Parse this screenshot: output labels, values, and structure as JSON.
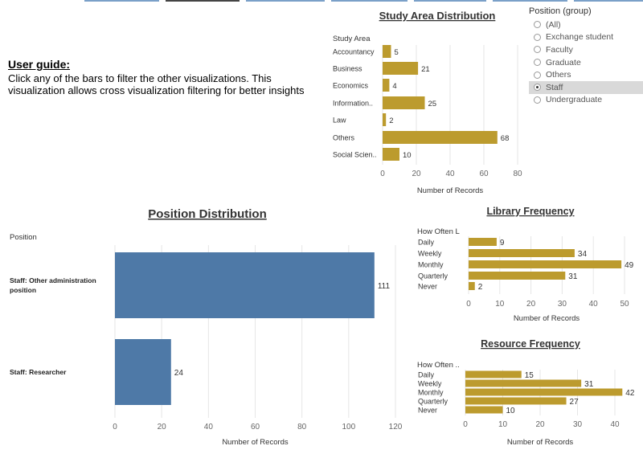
{
  "user_guide": {
    "heading": "User guide:",
    "body": "Click any of the bars to filter the other visualizations. This visualization allows cross visualization filtering for better insights"
  },
  "filter": {
    "title": "Position (group)",
    "options": [
      "(All)",
      "Exchange student",
      "Faculty",
      "Graduate",
      "Others",
      "Staff",
      "Undergraduate"
    ],
    "selected": "Staff"
  },
  "colors": {
    "gold": "#bc9b2e",
    "blue": "#4e79a7",
    "grid": "#e6e6e6"
  },
  "chart_data": [
    {
      "type": "bar",
      "title": "Study Area Distribution",
      "row_header": "Study Area",
      "categories": [
        "Accountancy",
        "Business",
        "Economics",
        "Information..",
        "Law",
        "Others",
        "Social Scien.."
      ],
      "values": [
        5,
        21,
        4,
        25,
        2,
        68,
        10
      ],
      "xlabel": "Number of Records",
      "xlim": [
        0,
        80
      ],
      "ticks": [
        0,
        20,
        40,
        60,
        80
      ]
    },
    {
      "type": "bar",
      "title": "Position Distribution",
      "row_header": "Position",
      "categories": [
        "Staff: Other administration position",
        "Staff: Researcher"
      ],
      "values": [
        111,
        24
      ],
      "xlabel": "Number of Records",
      "xlim": [
        0,
        120
      ],
      "ticks": [
        0,
        20,
        40,
        60,
        80,
        100,
        120
      ]
    },
    {
      "type": "bar",
      "title": "Library Frequency",
      "row_header": "How Often L",
      "categories": [
        "Daily",
        "Weekly",
        "Monthly",
        "Quarterly",
        "Never"
      ],
      "values": [
        9,
        34,
        49,
        31,
        2
      ],
      "xlabel": "Number of Records",
      "xlim": [
        0,
        50
      ],
      "ticks": [
        0,
        10,
        20,
        30,
        40,
        50
      ]
    },
    {
      "type": "bar",
      "title": "Resource Frequency",
      "row_header": "How Often ..",
      "categories": [
        "Daily",
        "Weekly",
        "Monthly",
        "Quarterly",
        "Never"
      ],
      "values": [
        15,
        31,
        42,
        27,
        10
      ],
      "xlabel": "Number of Records",
      "xlim": [
        0,
        40
      ],
      "ticks": [
        0,
        10,
        20,
        30,
        40
      ]
    }
  ]
}
